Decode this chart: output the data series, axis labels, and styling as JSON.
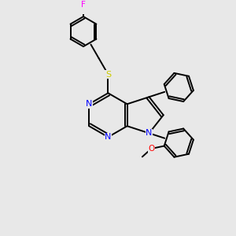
{
  "bg_color": "#e8e8e8",
  "bond_color": "#000000",
  "atom_colors": {
    "N": "#0000ff",
    "S": "#cccc00",
    "F": "#ff00ff",
    "O": "#ff0000",
    "C": "#000000"
  },
  "figsize": [
    3.0,
    3.0
  ],
  "dpi": 100
}
